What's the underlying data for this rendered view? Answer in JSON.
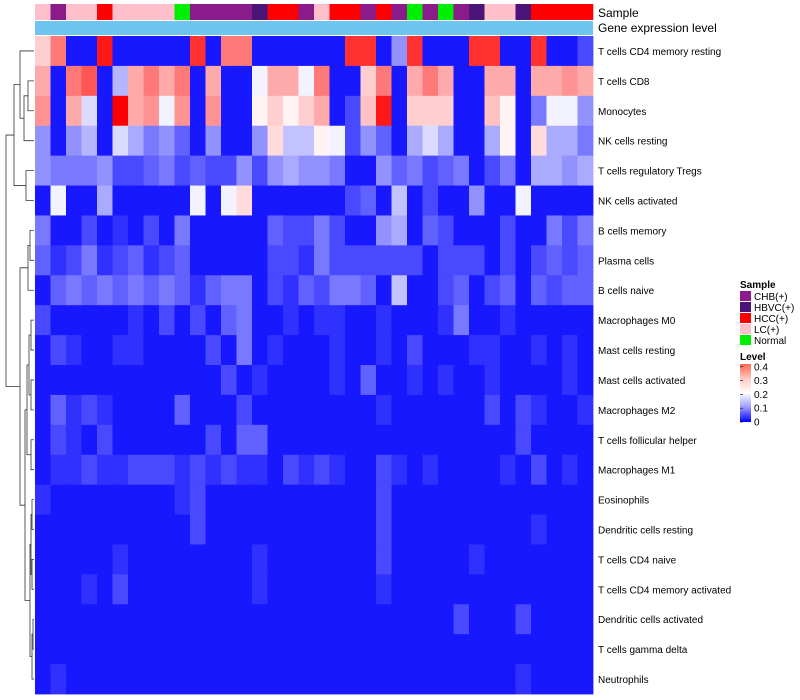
{
  "chart_data": {
    "type": "heatmap",
    "title": "",
    "annotation_tracks": [
      "Sample",
      "Gene expression level"
    ],
    "legends": {
      "sample": {
        "title": "Sample",
        "entries": [
          {
            "label": "CHB(+)",
            "color": "#8b1a8b"
          },
          {
            "label": "HBVC(+)",
            "color": "#4b1478"
          },
          {
            "label": "HCC(+)",
            "color": "#ff0000"
          },
          {
            "label": "LC(+)",
            "color": "#ffc0cb"
          },
          {
            "label": "Normal",
            "color": "#00ee00"
          }
        ]
      },
      "level": {
        "title": "Level",
        "ticks": [
          "0.4",
          "0.3",
          "0.2",
          "0.1",
          "0"
        ],
        "tick_values": [
          0.4,
          0.3,
          0.2,
          0.1,
          0
        ],
        "range": [
          0,
          0.42
        ],
        "colors": {
          "low": "#0000ff",
          "mid": "#ffffff",
          "high": "#ff0000"
        }
      }
    },
    "gene_expression_track_color": "#6ec6f0",
    "sample_groups": [
      "LC(+)",
      "CHB(+)",
      "LC(+)",
      "LC(+)",
      "HCC(+)",
      "LC(+)",
      "LC(+)",
      "LC(+)",
      "LC(+)",
      "Normal",
      "CHB(+)",
      "CHB(+)",
      "CHB(+)",
      "CHB(+)",
      "HBVC(+)",
      "HCC(+)",
      "HCC(+)",
      "CHB(+)",
      "LC(+)",
      "HCC(+)",
      "HCC(+)",
      "CHB(+)",
      "HCC(+)",
      "CHB(+)",
      "Normal",
      "CHB(+)",
      "Normal",
      "CHB(+)",
      "HBVC(+)",
      "LC(+)",
      "LC(+)",
      "HBVC(+)",
      "HCC(+)",
      "HCC(+)",
      "HCC(+)",
      "HCC(+)"
    ],
    "rows": [
      {
        "name": "T cells CD4 memory resting",
        "values": [
          0.25,
          0.32,
          0.02,
          0.02,
          0.4,
          0.02,
          0.02,
          0.02,
          0.02,
          0.02,
          0.38,
          0.02,
          0.32,
          0.32,
          0.02,
          0.02,
          0.02,
          0.02,
          0.02,
          0.02,
          0.38,
          0.38,
          0.02,
          0.12,
          0.38,
          0.02,
          0.02,
          0.02,
          0.38,
          0.38,
          0.02,
          0.02,
          0.38,
          0.02,
          0.02,
          0.06
        ]
      },
      {
        "name": "T cells CD8",
        "values": [
          0.28,
          0.02,
          0.32,
          0.35,
          0.02,
          0.15,
          0.28,
          0.32,
          0.28,
          0.32,
          0.02,
          0.28,
          0.02,
          0.02,
          0.2,
          0.28,
          0.28,
          0.2,
          0.32,
          0.02,
          0.02,
          0.25,
          0.32,
          0.02,
          0.28,
          0.32,
          0.28,
          0.02,
          0.02,
          0.28,
          0.28,
          0.02,
          0.28,
          0.28,
          0.3,
          0.28
        ]
      },
      {
        "name": "Monocytes",
        "values": [
          0.3,
          0.02,
          0.28,
          0.18,
          0.02,
          0.42,
          0.28,
          0.3,
          0.2,
          0.3,
          0.02,
          0.3,
          0.02,
          0.02,
          0.22,
          0.25,
          0.22,
          0.25,
          0.28,
          0.02,
          0.06,
          0.26,
          0.4,
          0.02,
          0.25,
          0.25,
          0.25,
          0.02,
          0.02,
          0.26,
          0.22,
          0.02,
          0.1,
          0.2,
          0.2,
          0.12
        ]
      },
      {
        "name": "NK cells resting",
        "values": [
          0.12,
          0.02,
          0.12,
          0.15,
          0.02,
          0.18,
          0.14,
          0.1,
          0.12,
          0.08,
          0.02,
          0.12,
          0.02,
          0.02,
          0.12,
          0.24,
          0.16,
          0.16,
          0.22,
          0.2,
          0.06,
          0.12,
          0.08,
          0.02,
          0.14,
          0.18,
          0.14,
          0.02,
          0.02,
          0.14,
          0.22,
          0.02,
          0.24,
          0.14,
          0.14,
          0.1
        ]
      },
      {
        "name": "T cells regulatory  Tregs",
        "values": [
          0.12,
          0.1,
          0.1,
          0.1,
          0.12,
          0.06,
          0.06,
          0.08,
          0.1,
          0.06,
          0.08,
          0.06,
          0.06,
          0.12,
          0.06,
          0.12,
          0.14,
          0.12,
          0.12,
          0.1,
          0.02,
          0.02,
          0.12,
          0.08,
          0.1,
          0.06,
          0.08,
          0.1,
          0.02,
          0.06,
          0.1,
          0.02,
          0.14,
          0.14,
          0.12,
          0.14
        ]
      },
      {
        "name": "NK cells activated",
        "values": [
          0.02,
          0.2,
          0.02,
          0.02,
          0.14,
          0.02,
          0.02,
          0.02,
          0.02,
          0.02,
          0.2,
          0.02,
          0.2,
          0.24,
          0.02,
          0.02,
          0.02,
          0.02,
          0.02,
          0.02,
          0.06,
          0.08,
          0.02,
          0.16,
          0.02,
          0.06,
          0.02,
          0.02,
          0.12,
          0.02,
          0.02,
          0.2,
          0.02,
          0.02,
          0.02,
          0.02
        ]
      },
      {
        "name": "B cells memory",
        "values": [
          0.1,
          0.02,
          0.02,
          0.06,
          0.02,
          0.04,
          0.02,
          0.06,
          0.02,
          0.1,
          0.02,
          0.02,
          0.02,
          0.02,
          0.02,
          0.08,
          0.06,
          0.06,
          0.1,
          0.06,
          0.02,
          0.02,
          0.12,
          0.14,
          0.02,
          0.08,
          0.06,
          0.02,
          0.02,
          0.02,
          0.06,
          0.02,
          0.02,
          0.1,
          0.06,
          0.1
        ]
      },
      {
        "name": "Plasma cells",
        "values": [
          0.08,
          0.04,
          0.06,
          0.1,
          0.04,
          0.06,
          0.08,
          0.04,
          0.06,
          0.08,
          0.02,
          0.02,
          0.02,
          0.02,
          0.02,
          0.06,
          0.06,
          0.04,
          0.1,
          0.06,
          0.06,
          0.06,
          0.06,
          0.06,
          0.06,
          0.02,
          0.06,
          0.06,
          0.06,
          0.02,
          0.06,
          0.02,
          0.06,
          0.08,
          0.06,
          0.08
        ]
      },
      {
        "name": "B cells naive",
        "values": [
          0.02,
          0.08,
          0.1,
          0.08,
          0.1,
          0.08,
          0.1,
          0.08,
          0.1,
          0.08,
          0.04,
          0.08,
          0.1,
          0.1,
          0.02,
          0.06,
          0.04,
          0.08,
          0.06,
          0.1,
          0.1,
          0.08,
          0.02,
          0.16,
          0.02,
          0.02,
          0.06,
          0.08,
          0.02,
          0.06,
          0.08,
          0.02,
          0.08,
          0.06,
          0.08,
          0.08
        ]
      },
      {
        "name": "Macrophages M0",
        "values": [
          0.06,
          0.02,
          0.02,
          0.02,
          0.02,
          0.02,
          0.04,
          0.02,
          0.06,
          0.02,
          0.06,
          0.02,
          0.08,
          0.1,
          0.02,
          0.02,
          0.04,
          0.02,
          0.04,
          0.04,
          0.02,
          0.02,
          0.04,
          0.02,
          0.02,
          0.02,
          0.04,
          0.1,
          0.02,
          0.02,
          0.04,
          0.02,
          0.02,
          0.02,
          0.02,
          0.02
        ]
      },
      {
        "name": "Mast cells resting",
        "values": [
          0.02,
          0.06,
          0.04,
          0.02,
          0.02,
          0.04,
          0.04,
          0.02,
          0.02,
          0.02,
          0.02,
          0.06,
          0.02,
          0.1,
          0.02,
          0.04,
          0.02,
          0.02,
          0.02,
          0.04,
          0.02,
          0.02,
          0.04,
          0.02,
          0.06,
          0.02,
          0.02,
          0.02,
          0.04,
          0.04,
          0.02,
          0.02,
          0.04,
          0.02,
          0.04,
          0.02
        ]
      },
      {
        "name": "Mast cells activated",
        "values": [
          0.02,
          0.02,
          0.02,
          0.02,
          0.02,
          0.02,
          0.02,
          0.02,
          0.02,
          0.02,
          0.02,
          0.02,
          0.06,
          0.02,
          0.04,
          0.02,
          0.02,
          0.02,
          0.02,
          0.04,
          0.02,
          0.08,
          0.02,
          0.02,
          0.04,
          0.02,
          0.04,
          0.02,
          0.02,
          0.04,
          0.02,
          0.02,
          0.02,
          0.02,
          0.04,
          0.02
        ]
      },
      {
        "name": "Macrophages M2",
        "values": [
          0.02,
          0.08,
          0.04,
          0.06,
          0.04,
          0.02,
          0.02,
          0.02,
          0.02,
          0.08,
          0.02,
          0.02,
          0.02,
          0.06,
          0.02,
          0.02,
          0.02,
          0.02,
          0.02,
          0.02,
          0.02,
          0.02,
          0.04,
          0.02,
          0.02,
          0.02,
          0.02,
          0.02,
          0.02,
          0.06,
          0.02,
          0.06,
          0.04,
          0.02,
          0.02,
          0.04
        ]
      },
      {
        "name": "T cells follicular helper",
        "values": [
          0.02,
          0.06,
          0.04,
          0.02,
          0.06,
          0.02,
          0.02,
          0.02,
          0.02,
          0.02,
          0.02,
          0.06,
          0.02,
          0.08,
          0.08,
          0.02,
          0.02,
          0.02,
          0.02,
          0.02,
          0.02,
          0.02,
          0.02,
          0.02,
          0.02,
          0.02,
          0.02,
          0.02,
          0.02,
          0.02,
          0.02,
          0.06,
          0.02,
          0.02,
          0.02,
          0.02
        ]
      },
      {
        "name": "Macrophages M1",
        "values": [
          0.02,
          0.04,
          0.04,
          0.06,
          0.04,
          0.04,
          0.06,
          0.06,
          0.06,
          0.04,
          0.06,
          0.04,
          0.06,
          0.04,
          0.04,
          0.02,
          0.06,
          0.04,
          0.06,
          0.04,
          0.02,
          0.02,
          0.06,
          0.04,
          0.02,
          0.04,
          0.02,
          0.02,
          0.02,
          0.02,
          0.04,
          0.02,
          0.06,
          0.02,
          0.04,
          0.02
        ]
      },
      {
        "name": "Eosinophils",
        "values": [
          0.04,
          0.02,
          0.02,
          0.02,
          0.02,
          0.02,
          0.02,
          0.02,
          0.02,
          0.04,
          0.06,
          0.02,
          0.02,
          0.02,
          0.02,
          0.02,
          0.02,
          0.02,
          0.02,
          0.02,
          0.02,
          0.02,
          0.06,
          0.02,
          0.02,
          0.02,
          0.02,
          0.02,
          0.02,
          0.02,
          0.02,
          0.02,
          0.02,
          0.02,
          0.02,
          0.02
        ]
      },
      {
        "name": "Dendritic cells resting",
        "values": [
          0.02,
          0.02,
          0.02,
          0.02,
          0.02,
          0.02,
          0.02,
          0.02,
          0.02,
          0.02,
          0.06,
          0.02,
          0.02,
          0.02,
          0.02,
          0.02,
          0.02,
          0.02,
          0.02,
          0.02,
          0.02,
          0.02,
          0.06,
          0.02,
          0.02,
          0.02,
          0.02,
          0.02,
          0.02,
          0.02,
          0.02,
          0.02,
          0.04,
          0.02,
          0.02,
          0.02
        ]
      },
      {
        "name": "T cells CD4 naive",
        "values": [
          0.02,
          0.02,
          0.02,
          0.02,
          0.02,
          0.04,
          0.02,
          0.02,
          0.02,
          0.02,
          0.02,
          0.02,
          0.02,
          0.02,
          0.04,
          0.02,
          0.02,
          0.02,
          0.02,
          0.02,
          0.02,
          0.02,
          0.06,
          0.02,
          0.02,
          0.02,
          0.02,
          0.02,
          0.04,
          0.02,
          0.02,
          0.02,
          0.02,
          0.02,
          0.02,
          0.02
        ]
      },
      {
        "name": "T cells CD4 memory activated",
        "values": [
          0.02,
          0.02,
          0.02,
          0.04,
          0.02,
          0.06,
          0.02,
          0.02,
          0.02,
          0.02,
          0.02,
          0.02,
          0.02,
          0.02,
          0.04,
          0.02,
          0.02,
          0.02,
          0.02,
          0.02,
          0.02,
          0.02,
          0.04,
          0.02,
          0.02,
          0.02,
          0.02,
          0.02,
          0.02,
          0.02,
          0.02,
          0.02,
          0.02,
          0.02,
          0.02,
          0.02
        ]
      },
      {
        "name": "Dendritic cells activated",
        "values": [
          0.02,
          0.02,
          0.02,
          0.02,
          0.02,
          0.02,
          0.02,
          0.02,
          0.02,
          0.02,
          0.02,
          0.02,
          0.02,
          0.02,
          0.02,
          0.02,
          0.02,
          0.02,
          0.02,
          0.02,
          0.02,
          0.02,
          0.02,
          0.02,
          0.02,
          0.02,
          0.02,
          0.06,
          0.02,
          0.02,
          0.02,
          0.06,
          0.02,
          0.02,
          0.02,
          0.02
        ]
      },
      {
        "name": "T cells gamma delta",
        "values": [
          0.02,
          0.02,
          0.02,
          0.02,
          0.02,
          0.02,
          0.02,
          0.02,
          0.02,
          0.02,
          0.02,
          0.02,
          0.02,
          0.02,
          0.02,
          0.02,
          0.02,
          0.02,
          0.02,
          0.02,
          0.02,
          0.02,
          0.02,
          0.02,
          0.02,
          0.02,
          0.02,
          0.02,
          0.02,
          0.02,
          0.02,
          0.02,
          0.02,
          0.02,
          0.02,
          0.02
        ]
      },
      {
        "name": "Neutrophils",
        "values": [
          0.02,
          0.04,
          0.02,
          0.02,
          0.02,
          0.02,
          0.02,
          0.02,
          0.02,
          0.02,
          0.02,
          0.02,
          0.02,
          0.02,
          0.02,
          0.02,
          0.02,
          0.02,
          0.02,
          0.02,
          0.02,
          0.02,
          0.02,
          0.02,
          0.02,
          0.02,
          0.02,
          0.02,
          0.02,
          0.02,
          0.02,
          0.04,
          0.02,
          0.02,
          0.02,
          0.02
        ]
      }
    ]
  }
}
